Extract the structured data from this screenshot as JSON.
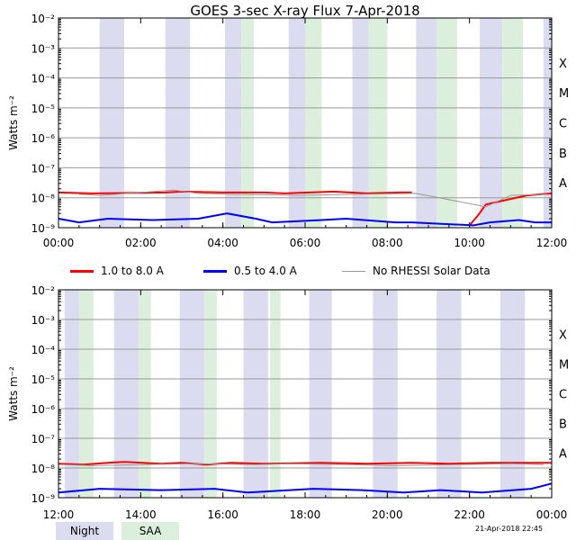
{
  "chart_data": [
    {
      "type": "line",
      "panel": "top",
      "title": "GOES 3-sec X-ray Flux     7-Apr-2018",
      "ylabel": "Watts m⁻²",
      "yscale": "log",
      "ylim": [
        1e-09,
        0.01
      ],
      "ytick_labels": [
        "10⁻⁹",
        "10⁻⁸",
        "10⁻⁷",
        "10⁻⁶",
        "10⁻⁵",
        "10⁻⁴",
        "10⁻³",
        "10⁻²"
      ],
      "flare_classes": [
        "A",
        "B",
        "C",
        "M",
        "X"
      ],
      "xlim_hours": [
        0,
        12
      ],
      "xtick_labels": [
        "00:00",
        "02:00",
        "04:00",
        "06:00",
        "08:00",
        "10:00",
        "12:00"
      ],
      "night_intervals_hours": [
        [
          1.0,
          1.6
        ],
        [
          2.6,
          3.2
        ],
        [
          4.05,
          4.45
        ],
        [
          5.6,
          6.0
        ],
        [
          7.15,
          7.55
        ],
        [
          8.7,
          9.2
        ],
        [
          10.25,
          10.8
        ],
        [
          11.8,
          12.0
        ]
      ],
      "saa_intervals_hours": [
        [
          4.45,
          4.75
        ],
        [
          6.0,
          6.4
        ],
        [
          7.55,
          8.0
        ],
        [
          9.2,
          9.7
        ],
        [
          10.8,
          11.3
        ]
      ],
      "series": [
        {
          "name": "1.0 to 8.0 A",
          "color": "#ff0000",
          "x": [
            0.0,
            0.8,
            2.6,
            3.0,
            4.0,
            5.0,
            5.5,
            6.7,
            7.1,
            7.5,
            8.3,
            8.6,
            9.8,
            10.0,
            10.2,
            10.4,
            11.4,
            12.0
          ],
          "y": [
            1.5e-08,
            1.4e-08,
            1.5e-08,
            1.6e-08,
            1.5e-08,
            1.5e-08,
            1.4e-08,
            1.6e-08,
            1.5e-08,
            1.4e-08,
            1.5e-08,
            1.5e-08,
            null,
            1.2e-09,
            2.5e-09,
            6e-09,
            1.2e-08,
            1.4e-08
          ]
        },
        {
          "name": "0.5 to 4.0 A",
          "color": "#0000ff",
          "x": [
            0.0,
            0.5,
            1.2,
            2.3,
            3.4,
            4.1,
            4.8,
            5.2,
            6.4,
            7.0,
            8.2,
            8.6,
            10.1,
            10.5,
            11.2,
            11.6,
            12.0
          ],
          "y": [
            2e-09,
            1.5e-09,
            2e-09,
            1.8e-09,
            2e-09,
            3e-09,
            2e-09,
            1.5e-09,
            1.8e-09,
            2e-09,
            1.5e-09,
            1.5e-09,
            1.2e-09,
            1.5e-09,
            1.8e-09,
            1.5e-09,
            1.5e-09
          ]
        },
        {
          "name": "No RHESSI Solar Data",
          "color": "#999999",
          "x": [
            0.5,
            1.0,
            2.8,
            3.4,
            4.2,
            5.8,
            7.3,
            8.7,
            10.4,
            11.0,
            11.9
          ],
          "y": [
            1.3e-08,
            1.2e-08,
            1.8e-08,
            1.4e-08,
            1.3e-08,
            1.2e-08,
            1.3e-08,
            1.4e-08,
            5e-09,
            1.2e-08,
            1.3e-08
          ]
        }
      ]
    },
    {
      "type": "line",
      "panel": "bottom",
      "title": "",
      "ylabel": "Watts m⁻²",
      "yscale": "log",
      "ylim": [
        1e-09,
        0.01
      ],
      "ytick_labels": [
        "10⁻⁹",
        "10⁻⁸",
        "10⁻⁷",
        "10⁻⁶",
        "10⁻⁵",
        "10⁻⁴",
        "10⁻³",
        "10⁻²"
      ],
      "flare_classes": [
        "A",
        "B",
        "C",
        "M",
        "X"
      ],
      "xlim_hours": [
        12,
        24
      ],
      "xtick_labels": [
        "12:00",
        "14:00",
        "16:00",
        "18:00",
        "20:00",
        "22:00",
        "00:00"
      ],
      "night_intervals_hours": [
        [
          12.15,
          12.5
        ],
        [
          13.35,
          13.95
        ],
        [
          14.95,
          15.55
        ],
        [
          16.5,
          17.1
        ],
        [
          18.1,
          18.65
        ],
        [
          19.65,
          20.25
        ],
        [
          21.2,
          21.8
        ],
        [
          22.75,
          23.35
        ]
      ],
      "saa_intervals_hours": [
        [
          12.5,
          12.85
        ],
        [
          13.95,
          14.25
        ],
        [
          15.55,
          15.85
        ],
        [
          17.15,
          17.4
        ]
      ],
      "series": [
        {
          "name": "1.0 to 8.0 A",
          "color": "#ff0000",
          "x": [
            12.0,
            12.6,
            13.2,
            13.6,
            14.5,
            15.0,
            15.6,
            16.2,
            17.0,
            18.4,
            19.5,
            20.6,
            21.5,
            22.5,
            23.4,
            24.0
          ],
          "y": [
            1.4e-08,
            1.3e-08,
            1.5e-08,
            1.6e-08,
            1.4e-08,
            1.5e-08,
            1.3e-08,
            1.5e-08,
            1.4e-08,
            1.5e-08,
            1.4e-08,
            1.5e-08,
            1.4e-08,
            1.5e-08,
            1.5e-08,
            1.5e-08
          ]
        },
        {
          "name": "0.5 to 4.0 A",
          "color": "#0000ff",
          "x": [
            12.0,
            13.0,
            14.5,
            15.8,
            16.6,
            18.2,
            19.4,
            20.4,
            21.3,
            22.3,
            23.5,
            24.0
          ],
          "y": [
            1.5e-09,
            2e-09,
            1.8e-09,
            2e-09,
            1.5e-09,
            2e-09,
            1.8e-09,
            1.5e-09,
            1.8e-09,
            1.5e-09,
            2e-09,
            3e-09
          ]
        },
        {
          "name": "No RHESSI Solar Data",
          "color": "#999999",
          "x": [
            12.1,
            12.8,
            14.0,
            15.3,
            16.8,
            17.6,
            19.0,
            20.2,
            21.8,
            23.0,
            23.8
          ],
          "y": [
            1.3e-08,
            1.2e-08,
            1.3e-08,
            1.4e-08,
            1.3e-08,
            1.4e-08,
            1.3e-08,
            1.2e-08,
            1.3e-08,
            1.4e-08,
            1.3e-08
          ]
        }
      ]
    }
  ],
  "legend": {
    "series1": "1.0 to 8.0 A",
    "series2": "0.5 to 4.0 A",
    "series3": "No RHESSI Solar Data",
    "night": "Night",
    "saa": "SAA"
  },
  "colors": {
    "night": "#dcdcf0",
    "saa": "#dcefdc",
    "series1": "#ff0000",
    "series2": "#0000ff",
    "series3": "#999999"
  },
  "timestamp": "21-Apr-2018 22:45"
}
